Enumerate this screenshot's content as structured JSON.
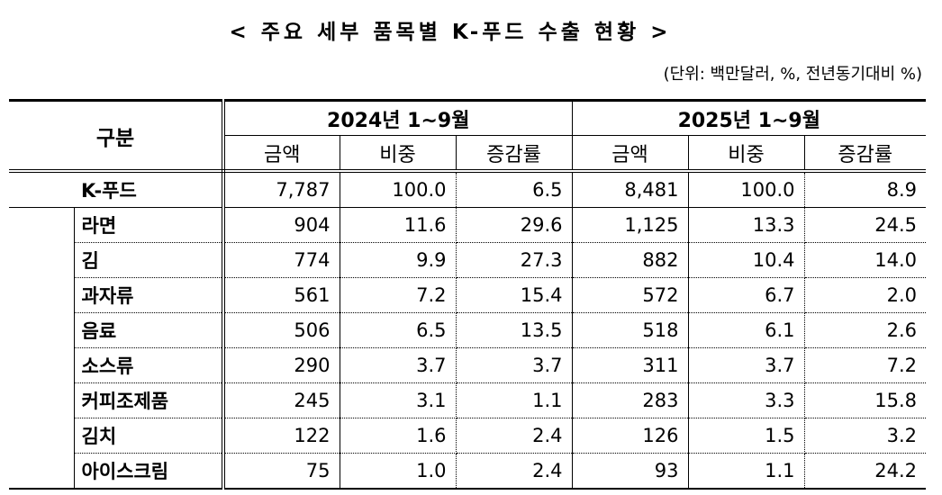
{
  "title": "< 주요 세부 품목별 K-푸드 수출 현황 >",
  "unit_note": "(단위: 백만달러, %, 전년동기대비 %)",
  "table": {
    "row_header": "구분",
    "periods": [
      "2024년 1~9월",
      "2025년 1~9월"
    ],
    "sub_headers": [
      "금액",
      "비중",
      "증감률",
      "금액",
      "비중",
      "증감률"
    ],
    "rows": [
      {
        "label": "K-푸드",
        "values": [
          "7,787",
          "100.0",
          "6.5",
          "8,481",
          "100.0",
          "8.9"
        ]
      },
      {
        "label": "라면",
        "values": [
          "904",
          "11.6",
          "29.6",
          "1,125",
          "13.3",
          "24.5"
        ]
      },
      {
        "label": "김",
        "values": [
          "774",
          "9.9",
          "27.3",
          "882",
          "10.4",
          "14.0"
        ]
      },
      {
        "label": "과자류",
        "values": [
          "561",
          "7.2",
          "15.4",
          "572",
          "6.7",
          "2.0"
        ]
      },
      {
        "label": "음료",
        "values": [
          "506",
          "6.5",
          "13.5",
          "518",
          "6.1",
          "2.6"
        ]
      },
      {
        "label": "소스류",
        "values": [
          "290",
          "3.7",
          "3.7",
          "311",
          "3.7",
          "7.2"
        ]
      },
      {
        "label": "커피조제품",
        "values": [
          "245",
          "3.1",
          "1.1",
          "283",
          "3.3",
          "15.8"
        ]
      },
      {
        "label": "김치",
        "values": [
          "122",
          "1.6",
          "2.4",
          "126",
          "1.5",
          "3.2"
        ]
      },
      {
        "label": "아이스크림",
        "values": [
          "75",
          "1.0",
          "2.4",
          "93",
          "1.1",
          "24.2"
        ]
      }
    ]
  }
}
